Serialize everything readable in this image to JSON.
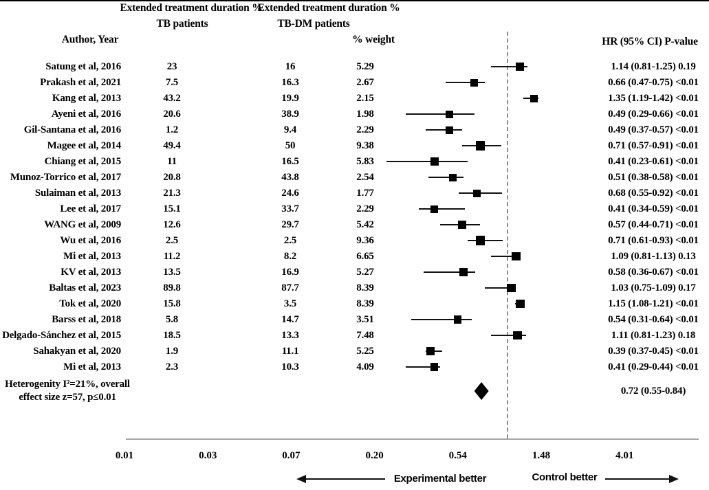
{
  "headers": {
    "col_tb_line1": "Extended treatment duration %",
    "col_tb_line2": "TB patients",
    "col_tbdm_line1": "Extended treatment duration %",
    "col_tbdm_line2": "TB-DM patients",
    "author": "Author, Year",
    "weight": "% weight",
    "hr_header": "HR (95% CI)  P-value"
  },
  "chart_data": {
    "type": "scatter",
    "subtype": "forest-plot",
    "title": "",
    "x_axis": {
      "scale": "log",
      "tick_labels": [
        "0.01",
        "0.03",
        "0.07",
        "0.20",
        "0.54",
        "1.48",
        "4.01"
      ],
      "null_line_value": 1
    },
    "direction_labels": {
      "left": "Experimental better",
      "right": "Control better"
    },
    "studies": [
      {
        "author": "Satung et al, 2016",
        "tb_pct": "23",
        "tbdm_pct": "16",
        "weight_pct": "5.29",
        "hr": 1.14,
        "ci_low": 0.81,
        "ci_high": 1.25,
        "hr_ci_text": "1.14 (0.81-1.25)",
        "p": "0.19"
      },
      {
        "author": "Prakash et al, 2021",
        "tb_pct": "7.5",
        "tbdm_pct": "16.3",
        "weight_pct": "2.67",
        "hr": 0.66,
        "ci_low": 0.47,
        "ci_high": 0.75,
        "hr_ci_text": "0.66 (0.47-0.75)",
        "p": "<0.01"
      },
      {
        "author": "Kang et al, 2013",
        "tb_pct": "43.2",
        "tbdm_pct": "19.9",
        "weight_pct": "2.15",
        "hr": 1.35,
        "ci_low": 1.19,
        "ci_high": 1.42,
        "hr_ci_text": "1.35 (1.19-1.42)",
        "p": "<0.01"
      },
      {
        "author": "Ayeni et al, 2016",
        "tb_pct": "20.6",
        "tbdm_pct": "38.9",
        "weight_pct": "1.98",
        "hr": 0.49,
        "ci_low": 0.29,
        "ci_high": 0.66,
        "hr_ci_text": "0.49 (0.29-0.66)",
        "p": "<0.01"
      },
      {
        "author": "Gil-Santana et al, 2016",
        "tb_pct": "1.2",
        "tbdm_pct": "9.4",
        "weight_pct": "2.29",
        "hr": 0.49,
        "ci_low": 0.37,
        "ci_high": 0.57,
        "hr_ci_text": "0.49 (0.37-0.57)",
        "p": "<0.01"
      },
      {
        "author": "Magee et al, 2014",
        "tb_pct": "49.4",
        "tbdm_pct": "50",
        "weight_pct": "9.38",
        "hr": 0.71,
        "ci_low": 0.57,
        "ci_high": 0.91,
        "hr_ci_text": "0.71 (0.57-0.91)",
        "p": "<0.01"
      },
      {
        "author": "Chiang et al, 2015",
        "tb_pct": "11",
        "tbdm_pct": "16.5",
        "weight_pct": "5.83",
        "hr": 0.41,
        "ci_low": 0.23,
        "ci_high": 0.61,
        "hr_ci_text": "0.41 (0.23-0.61)",
        "p": "<0.01"
      },
      {
        "author": "Munoz-Torrico et al, 2017",
        "tb_pct": "20.8",
        "tbdm_pct": "43.8",
        "weight_pct": "2.54",
        "hr": 0.51,
        "ci_low": 0.38,
        "ci_high": 0.58,
        "hr_ci_text": "0.51 (0.38-0.58)",
        "p": "<0.01"
      },
      {
        "author": "Sulaiman et al, 2013",
        "tb_pct": "21.3",
        "tbdm_pct": "24.6",
        "weight_pct": "1.77",
        "hr": 0.68,
        "ci_low": 0.55,
        "ci_high": 0.92,
        "hr_ci_text": "0.68 (0.55-0.92)",
        "p": "<0.01"
      },
      {
        "author": "Lee et al, 2017",
        "tb_pct": "15.1",
        "tbdm_pct": "33.7",
        "weight_pct": "2.29",
        "hr": 0.41,
        "ci_low": 0.34,
        "ci_high": 0.59,
        "hr_ci_text": "0.41 (0.34-0.59)",
        "p": "<0.01"
      },
      {
        "author": "WANG et al, 2009",
        "tb_pct": "12.6",
        "tbdm_pct": "29.7",
        "weight_pct": "5.42",
        "hr": 0.57,
        "ci_low": 0.44,
        "ci_high": 0.71,
        "hr_ci_text": "0.57 (0.44-0.71)",
        "p": "<0.01"
      },
      {
        "author": "Wu et al, 2016",
        "tb_pct": "2.5",
        "tbdm_pct": "2.5",
        "weight_pct": "9.36",
        "hr": 0.71,
        "ci_low": 0.61,
        "ci_high": 0.93,
        "hr_ci_text": "0.71 (0.61-0.93)",
        "p": "<0.01"
      },
      {
        "author": "Mi et al, 2013",
        "tb_pct": "11.2",
        "tbdm_pct": "8.2",
        "weight_pct": "6.65",
        "hr": 1.09,
        "ci_low": 0.81,
        "ci_high": 1.13,
        "hr_ci_text": "1.09 (0.81-1.13)",
        "p": "0.13"
      },
      {
        "author": "KV et al, 2013",
        "tb_pct": "13.5",
        "tbdm_pct": "16.9",
        "weight_pct": "5.27",
        "hr": 0.58,
        "ci_low": 0.36,
        "ci_high": 0.67,
        "hr_ci_text": "0.58 (0.36-0.67)",
        "p": "<0.01"
      },
      {
        "author": "Baltas et al, 2023",
        "tb_pct": "89.8",
        "tbdm_pct": "87.7",
        "weight_pct": "8.39",
        "hr": 1.03,
        "ci_low": 0.75,
        "ci_high": 1.09,
        "hr_ci_text": "1.03 (0.75-1.09)",
        "p": "0.17"
      },
      {
        "author": "Tok et al, 2020",
        "tb_pct": "15.8",
        "tbdm_pct": "3.5",
        "weight_pct": "8.39",
        "hr": 1.15,
        "ci_low": 1.08,
        "ci_high": 1.21,
        "hr_ci_text": "1.15 (1.08-1.21)",
        "p": "<0.01"
      },
      {
        "author": "Barss et al, 2018",
        "tb_pct": "5.8",
        "tbdm_pct": "14.7",
        "weight_pct": "3.51",
        "hr": 0.54,
        "ci_low": 0.31,
        "ci_high": 0.64,
        "hr_ci_text": "0.54 (0.31-0.64)",
        "p": "<0.01"
      },
      {
        "author": "Delgado-Sánchez et al, 2015",
        "tb_pct": "18.5",
        "tbdm_pct": "13.3",
        "weight_pct": "7.48",
        "hr": 1.11,
        "ci_low": 0.81,
        "ci_high": 1.23,
        "hr_ci_text": "1.11 (0.81-1.23)",
        "p": "0.18"
      },
      {
        "author": "Sahakyan et al, 2020",
        "tb_pct": "1.9",
        "tbdm_pct": "11.1",
        "weight_pct": "5.25",
        "hr": 0.39,
        "ci_low": 0.37,
        "ci_high": 0.45,
        "hr_ci_text": "0.39 (0.37-0.45)",
        "p": "<0.01"
      },
      {
        "author": "Mi et al, 2013",
        "tb_pct": "2.3",
        "tbdm_pct": "10.3",
        "weight_pct": "4.09",
        "hr": 0.41,
        "ci_low": 0.29,
        "ci_high": 0.44,
        "hr_ci_text": "0.41 (0.29-0.44)",
        "p": "<0.01"
      }
    ],
    "overall": {
      "label_line1": "Heterogenity I²=21%, overall",
      "label_line2": "effect size z=57, p≤0.01",
      "hr": 0.72,
      "ci_low": 0.55,
      "ci_high": 0.84,
      "hr_ci_text": "0.72 (0.55-0.84)"
    }
  }
}
